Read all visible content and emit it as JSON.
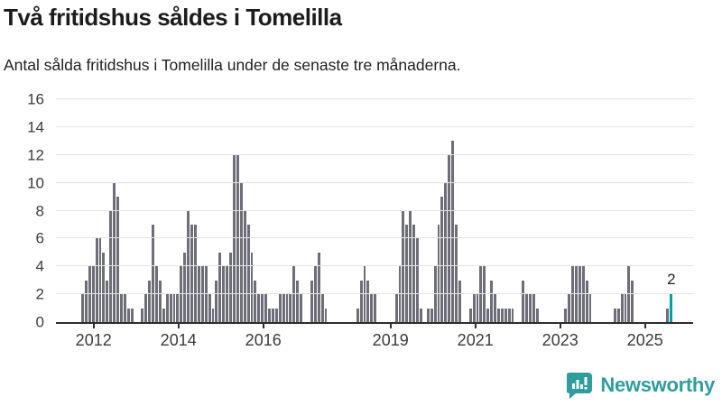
{
  "header": {
    "title": "Två fritidshus såldes i Tomelilla",
    "subtitle": "Antal sålda fritidshus i Tomelilla under de senaste tre månaderna."
  },
  "colors": {
    "bar_gray": "#6e6e78",
    "highlight_teal": "#00a1a5",
    "brand_teal": "#2f9d9f",
    "axis_dark": "#2e2e2e",
    "grid_light": "#e4e4e4"
  },
  "chart_data": {
    "type": "bar",
    "title": "Två fritidshus såldes i Tomelilla",
    "subtitle": "Antal sålda fritidshus i Tomelilla under de senaste tre månaderna.",
    "ylim": [
      0,
      16
    ],
    "y_ticks": [
      0,
      2,
      4,
      6,
      8,
      10,
      12,
      14,
      16
    ],
    "grid": true,
    "x_tick_labels": [
      "2012",
      "2014",
      "2016",
      "2019",
      "2021",
      "2023",
      "2025"
    ],
    "x_tick_slots": [
      3,
      27,
      51,
      87,
      111,
      135,
      159
    ],
    "values": [
      2,
      3,
      4,
      4,
      6,
      6,
      5,
      3,
      8,
      10,
      9,
      2,
      2,
      1,
      1,
      0,
      0,
      1,
      2,
      3,
      7,
      4,
      3,
      1,
      2,
      2,
      2,
      2,
      4,
      5,
      8,
      7,
      7,
      4,
      4,
      4,
      2,
      1,
      3,
      5,
      4,
      4,
      5,
      12,
      12,
      10,
      8,
      7,
      5,
      3,
      2,
      2,
      2,
      1,
      1,
      1,
      2,
      2,
      2,
      2,
      4,
      3,
      2,
      0,
      0,
      3,
      4,
      5,
      2,
      1,
      0,
      0,
      0,
      0,
      0,
      0,
      0,
      0,
      1,
      3,
      4,
      3,
      2,
      2,
      0,
      0,
      0,
      0,
      0,
      2,
      4,
      8,
      7,
      8,
      7,
      6,
      1,
      0,
      1,
      1,
      4,
      7,
      9,
      10,
      12,
      13,
      7,
      3,
      0,
      0,
      1,
      2,
      2,
      4,
      4,
      1,
      3,
      2,
      1,
      1,
      1,
      1,
      1,
      0,
      0,
      3,
      2,
      2,
      2,
      1,
      0,
      0,
      0,
      0,
      0,
      0,
      0,
      1,
      2,
      4,
      4,
      4,
      4,
      3,
      2,
      0,
      0,
      0,
      0,
      0,
      0,
      1,
      1,
      2,
      2,
      4,
      3,
      0,
      0,
      0,
      0,
      0,
      0,
      0,
      0,
      0,
      1,
      2
    ],
    "highlight_index": 167,
    "highlight_value_label": "2"
  },
  "footer": {
    "brand": "Newsworthy",
    "logo_icon": "newsworthy-speech-bubble-barchart-icon"
  }
}
